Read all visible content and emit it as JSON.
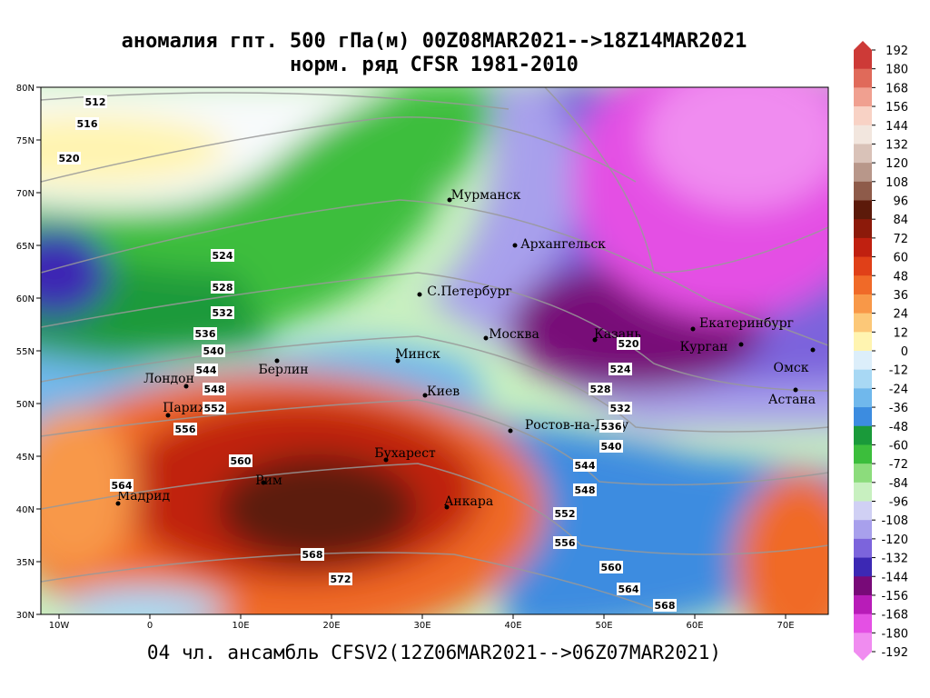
{
  "header": {
    "title": "аномалия гпт. 500 гПа(м) 00Z08MAR2021-->18Z14MAR2021",
    "subtitle": "норм. ряд CFSR 1981-2010"
  },
  "footer": "04 чл. ансамбль CFSV2(12Z06MAR2021-->06Z07MAR2021)",
  "map": {
    "lat_labels": [
      "80N",
      "75N",
      "70N",
      "65N",
      "60N",
      "55N",
      "50N",
      "45N",
      "40N",
      "35N",
      "30N"
    ],
    "lon_labels": [
      "10W",
      "0",
      "10E",
      "20E",
      "30E",
      "40E",
      "50E",
      "60E",
      "70E"
    ],
    "cities": [
      "Мурманск",
      "Архангельск",
      "С.Петербург",
      "Москва",
      "Казань",
      "Екатеринбург",
      "Курган",
      "Омск",
      "Астана",
      "Минск",
      "Киев",
      "Берлин",
      "Лондон",
      "Париж",
      "Мадрид",
      "Рим",
      "Бухарест",
      "Анкара",
      "Ростов-на-Дону"
    ],
    "contour_labels": [
      512,
      516,
      520,
      524,
      528,
      532,
      536,
      540,
      544,
      548,
      552,
      556,
      560,
      564,
      568,
      572,
      520,
      524,
      528,
      532,
      536,
      540,
      544,
      548,
      552,
      556,
      560,
      564,
      568
    ]
  },
  "colorbar": {
    "labels": [
      192,
      180,
      168,
      156,
      144,
      132,
      120,
      108,
      96,
      84,
      72,
      60,
      48,
      36,
      24,
      12,
      0,
      -12,
      -24,
      -36,
      -48,
      -60,
      -72,
      -84,
      -96,
      -108,
      -120,
      -132,
      -144,
      -156,
      -168,
      -180,
      -192
    ],
    "colors": [
      "#cd3a37",
      "#e06a5a",
      "#f0a090",
      "#f8d2c5",
      "#f2e6de",
      "#d9c2b8",
      "#b8978a",
      "#8e5b4a",
      "#5c1a0a",
      "#8c1a0a",
      "#c02010",
      "#e04018",
      "#f06a28",
      "#f89848",
      "#fcc878",
      "#fff4b0",
      "#dceefa",
      "#a8d8f4",
      "#70b8ec",
      "#3c8ce0",
      "#1a9a3a",
      "#3cbe3c",
      "#8cdc7c",
      "#c8f0c0",
      "#d0d0f4",
      "#a8a0ec",
      "#7c64dc",
      "#3c28b4",
      "#780a78",
      "#b81cb8",
      "#e450e4",
      "#f08cf0"
    ]
  }
}
